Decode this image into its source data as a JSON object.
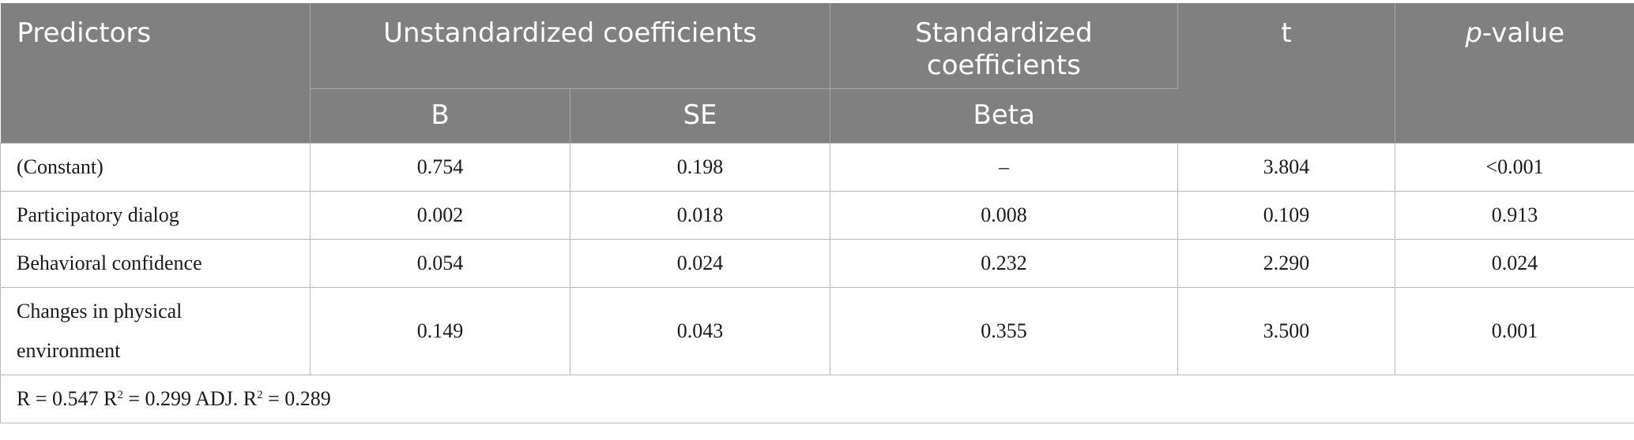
{
  "header": {
    "predictors": "Predictors",
    "unstandardized": "Unstandardized coefficients",
    "standardized_line1": "Standardized",
    "standardized_line2": "coefficients",
    "t": "t",
    "p_italic": "p",
    "p_rest": "-value",
    "b": "B",
    "se": "SE",
    "beta": "Beta"
  },
  "rows": [
    {
      "predictor": "(Constant)",
      "b": "0.754",
      "se": "0.198",
      "beta": "–",
      "t": "3.804",
      "p": "<0.001"
    },
    {
      "predictor": "Participatory dialog",
      "b": "0.002",
      "se": "0.018",
      "beta": "0.008",
      "t": "0.109",
      "p": "0.913"
    },
    {
      "predictor": "Behavioral confidence",
      "b": "0.054",
      "se": "0.024",
      "beta": "0.232",
      "t": "2.290",
      "p": "0.024"
    },
    {
      "predictor_line1": "Changes in physical",
      "predictor_line2": "environment",
      "b": "0.149",
      "se": "0.043",
      "beta": "0.355",
      "t": "3.500",
      "p": "0.001"
    }
  ],
  "footer": {
    "r_label": "R = 0.547 R",
    "r2_sup": "2",
    "r2_value": " = 0.299 ADJ. R",
    "adj_sup": "2",
    "adj_value": " = 0.289"
  }
}
